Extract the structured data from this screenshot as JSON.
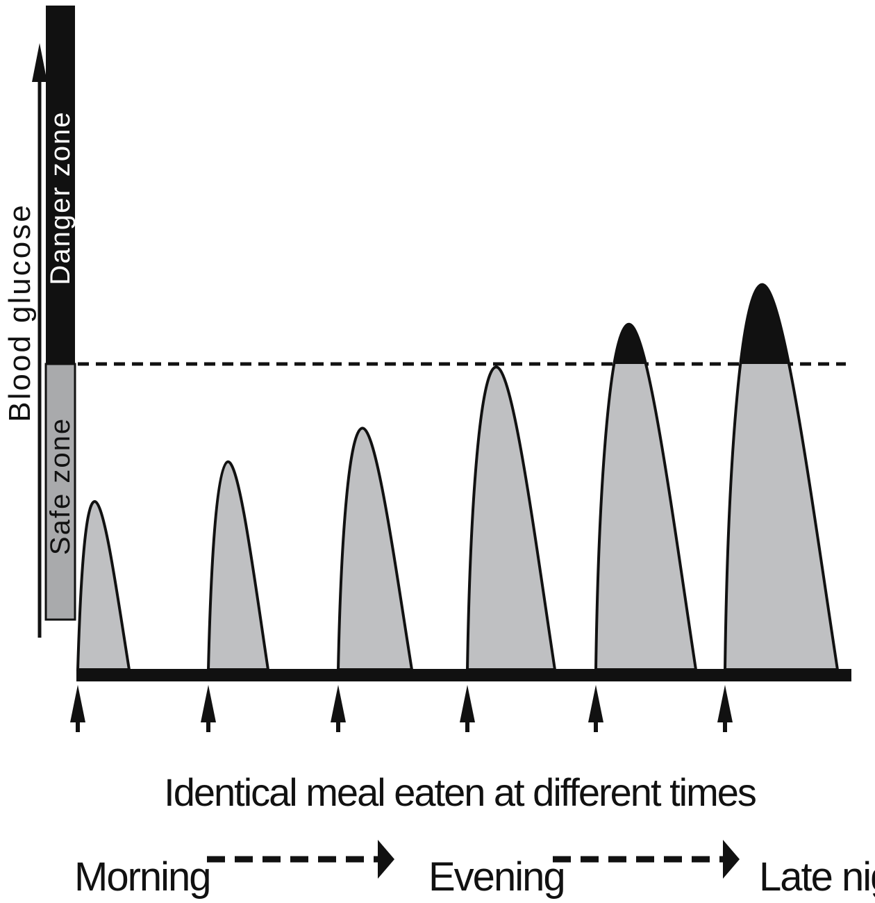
{
  "figure": {
    "y_axis_label": "Blood glucose",
    "danger_zone_label": "Danger zone",
    "safe_zone_label": "Safe zone",
    "x_caption": "Identical meal eaten at different times",
    "time_labels": [
      "Morning",
      "Evening",
      "Late night"
    ],
    "colors": {
      "curve_fill": "#bfc0c2",
      "danger_fill": "#111111",
      "outline": "#111111",
      "safe_bar": "#a9aaac",
      "danger_bar": "#111111"
    }
  },
  "chart_data": {
    "type": "area",
    "description_source": "relative glucose peaks after each identical meal",
    "meals": 6,
    "threshold": 1.0,
    "peak_values": [
      0.55,
      0.68,
      0.79,
      0.99,
      1.13,
      1.26
    ],
    "ylabel": "Blood glucose",
    "xlabel": "Identical meal eaten at different times"
  }
}
